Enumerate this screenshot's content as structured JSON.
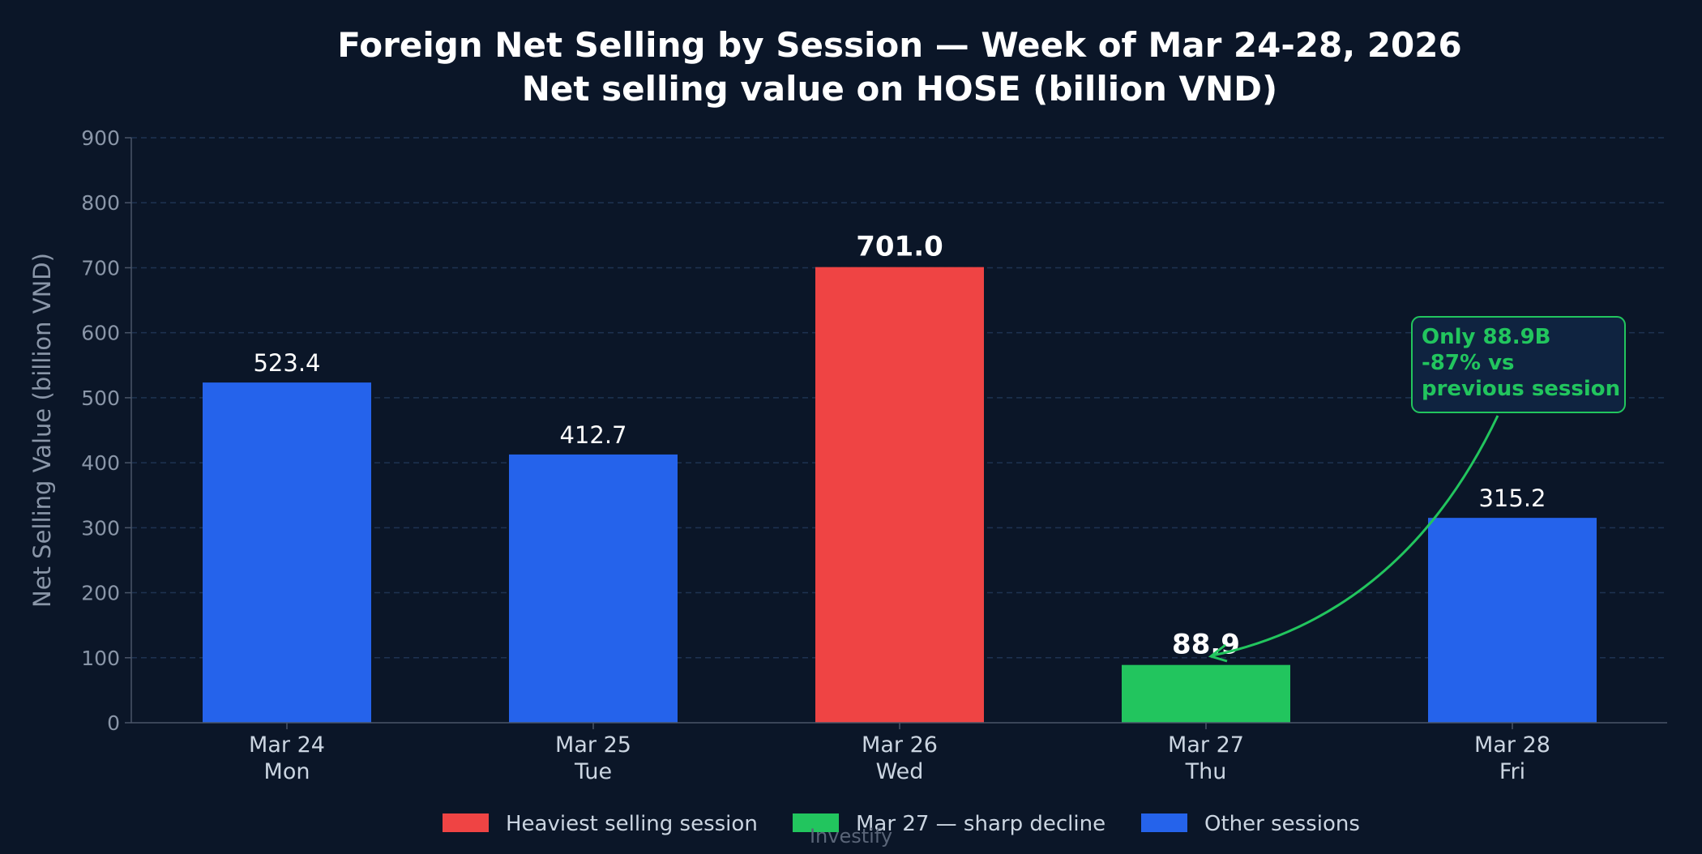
{
  "chart_data": {
    "type": "bar",
    "title": "Foreign Net Selling by Session — Week of Mar 24-28, 2026",
    "subtitle": "Net selling value on HOSE (billion VND)",
    "xlabel": "",
    "ylabel": "Net Selling Value (billion VND)",
    "ylim": [
      0,
      900
    ],
    "yticks": [
      0,
      100,
      200,
      300,
      400,
      500,
      600,
      700,
      800,
      900
    ],
    "grid": true,
    "categories": [
      {
        "date": "Mar 24",
        "day": "Mon"
      },
      {
        "date": "Mar 25",
        "day": "Tue"
      },
      {
        "date": "Mar 26",
        "day": "Wed"
      },
      {
        "date": "Mar 27",
        "day": "Thu"
      },
      {
        "date": "Mar 28",
        "day": "Fri"
      }
    ],
    "values": [
      523.4,
      412.7,
      701.0,
      88.9,
      315.2
    ],
    "value_labels": [
      "523.4",
      "412.7",
      "701.0",
      "88.9",
      "315.2"
    ],
    "bar_groups": [
      "other",
      "other",
      "heaviest",
      "decline",
      "other"
    ],
    "bold_labels": [
      false,
      false,
      true,
      true,
      false
    ],
    "colors": {
      "heaviest": "#ef4444",
      "decline": "#22c55e",
      "other": "#2563eb",
      "background": "#0b1628"
    },
    "legend": {
      "placement": "bottom-center",
      "items": [
        {
          "label": "Heaviest selling session",
          "group": "heaviest"
        },
        {
          "label": "Mar 27 — sharp decline",
          "group": "decline"
        },
        {
          "label": "Other sessions",
          "group": "other"
        }
      ]
    },
    "annotation": {
      "lines": [
        "Only 88.9B",
        "-87% vs",
        "previous session"
      ],
      "target_category": "Mar 27",
      "color": "#22c55e"
    }
  },
  "watermark": "Investify"
}
